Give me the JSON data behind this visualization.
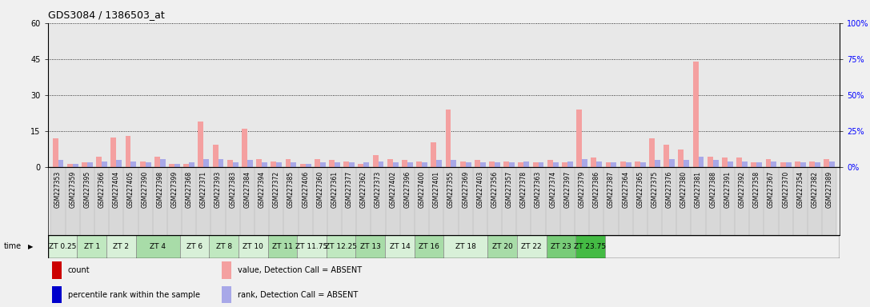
{
  "title": "GDS3084 / 1386503_at",
  "samples": [
    "GSM227353",
    "GSM227359",
    "GSM227395",
    "GSM227366",
    "GSM227404",
    "GSM227405",
    "GSM227390",
    "GSM227398",
    "GSM227399",
    "GSM227368",
    "GSM227371",
    "GSM227393",
    "GSM227383",
    "GSM227384",
    "GSM227394",
    "GSM227372",
    "GSM227385",
    "GSM227406",
    "GSM227360",
    "GSM227361",
    "GSM227377",
    "GSM227362",
    "GSM227373",
    "GSM227402",
    "GSM227396",
    "GSM227400",
    "GSM227401",
    "GSM227355",
    "GSM227369",
    "GSM227403",
    "GSM227356",
    "GSM227357",
    "GSM227378",
    "GSM227363",
    "GSM227374",
    "GSM227397",
    "GSM227379",
    "GSM227386",
    "GSM227387",
    "GSM227364",
    "GSM227365",
    "GSM227375",
    "GSM227376",
    "GSM227380",
    "GSM227381",
    "GSM227388",
    "GSM227391",
    "GSM227392",
    "GSM227358",
    "GSM227367",
    "GSM227370",
    "GSM227354",
    "GSM227382",
    "GSM227389"
  ],
  "time_groups": [
    {
      "label": "ZT 0.25",
      "start": 0,
      "end": 2,
      "color": "#d8f0d8"
    },
    {
      "label": "ZT 1",
      "start": 2,
      "end": 4,
      "color": "#c0e8c0"
    },
    {
      "label": "ZT 2",
      "start": 4,
      "end": 6,
      "color": "#d8f0d8"
    },
    {
      "label": "ZT 4",
      "start": 6,
      "end": 9,
      "color": "#a8dca8"
    },
    {
      "label": "ZT 6",
      "start": 9,
      "end": 11,
      "color": "#d8f0d8"
    },
    {
      "label": "ZT 8",
      "start": 11,
      "end": 13,
      "color": "#c0e8c0"
    },
    {
      "label": "ZT 10",
      "start": 13,
      "end": 15,
      "color": "#d8f0d8"
    },
    {
      "label": "ZT 11",
      "start": 15,
      "end": 17,
      "color": "#a8dca8"
    },
    {
      "label": "ZT 11.75",
      "start": 17,
      "end": 19,
      "color": "#d8f0d8"
    },
    {
      "label": "ZT 12.25",
      "start": 19,
      "end": 21,
      "color": "#c0e8c0"
    },
    {
      "label": "ZT 13",
      "start": 21,
      "end": 23,
      "color": "#a8dca8"
    },
    {
      "label": "ZT 14",
      "start": 23,
      "end": 25,
      "color": "#d8f0d8"
    },
    {
      "label": "ZT 16",
      "start": 25,
      "end": 27,
      "color": "#a8dca8"
    },
    {
      "label": "ZT 18",
      "start": 27,
      "end": 30,
      "color": "#d8f0d8"
    },
    {
      "label": "ZT 20",
      "start": 30,
      "end": 32,
      "color": "#a8dca8"
    },
    {
      "label": "ZT 22",
      "start": 32,
      "end": 34,
      "color": "#d8f0d8"
    },
    {
      "label": "ZT 23",
      "start": 34,
      "end": 36,
      "color": "#78cc78"
    },
    {
      "label": "ZT 23.75",
      "start": 36,
      "end": 38,
      "color": "#44bb44"
    }
  ],
  "values": [
    12.0,
    1.5,
    2.0,
    4.5,
    12.5,
    13.0,
    2.5,
    4.5,
    1.5,
    1.5,
    19.0,
    9.5,
    3.0,
    16.0,
    3.5,
    2.5,
    3.5,
    1.5,
    3.5,
    3.0,
    2.5,
    1.5,
    5.0,
    3.5,
    3.0,
    2.5,
    10.5,
    24.0,
    2.5,
    3.0,
    2.5,
    2.5,
    2.0,
    2.0,
    3.0,
    2.0,
    24.0,
    4.0,
    2.0,
    2.5,
    2.5,
    12.0,
    9.5,
    7.5,
    44.0,
    4.5,
    4.0,
    4.0,
    2.0,
    3.5,
    2.0,
    2.5,
    2.5,
    3.5
  ],
  "ranks": [
    3.0,
    1.5,
    2.0,
    2.5,
    3.0,
    2.5,
    2.0,
    3.5,
    1.5,
    2.0,
    3.5,
    3.5,
    2.0,
    3.0,
    2.0,
    2.0,
    2.0,
    1.5,
    2.0,
    2.0,
    2.0,
    2.0,
    2.5,
    2.0,
    2.0,
    2.0,
    3.0,
    3.0,
    2.0,
    2.0,
    2.0,
    2.0,
    2.5,
    2.0,
    2.0,
    2.5,
    3.5,
    2.5,
    2.0,
    2.0,
    2.0,
    3.0,
    3.5,
    3.0,
    4.5,
    3.0,
    2.5,
    2.5,
    2.0,
    2.5,
    2.0,
    2.0,
    2.0,
    2.5
  ],
  "ylim_left": [
    0,
    60
  ],
  "ylim_right": [
    0,
    100
  ],
  "yticks_left": [
    0,
    15,
    30,
    45,
    60
  ],
  "yticks_right": [
    0,
    25,
    50,
    75,
    100
  ],
  "value_color_absent": "#f4a0a0",
  "rank_color_absent": "#a8a8e8",
  "plot_bg": "#e8e8e8",
  "legend_items": [
    {
      "color": "#cc0000",
      "label": "count",
      "marker": "square"
    },
    {
      "color": "#0000cc",
      "label": "percentile rank within the sample",
      "marker": "square"
    },
    {
      "color": "#f4a0a0",
      "label": "value, Detection Call = ABSENT",
      "marker": "square"
    },
    {
      "color": "#a8a8e8",
      "label": "rank, Detection Call = ABSENT",
      "marker": "square"
    }
  ]
}
